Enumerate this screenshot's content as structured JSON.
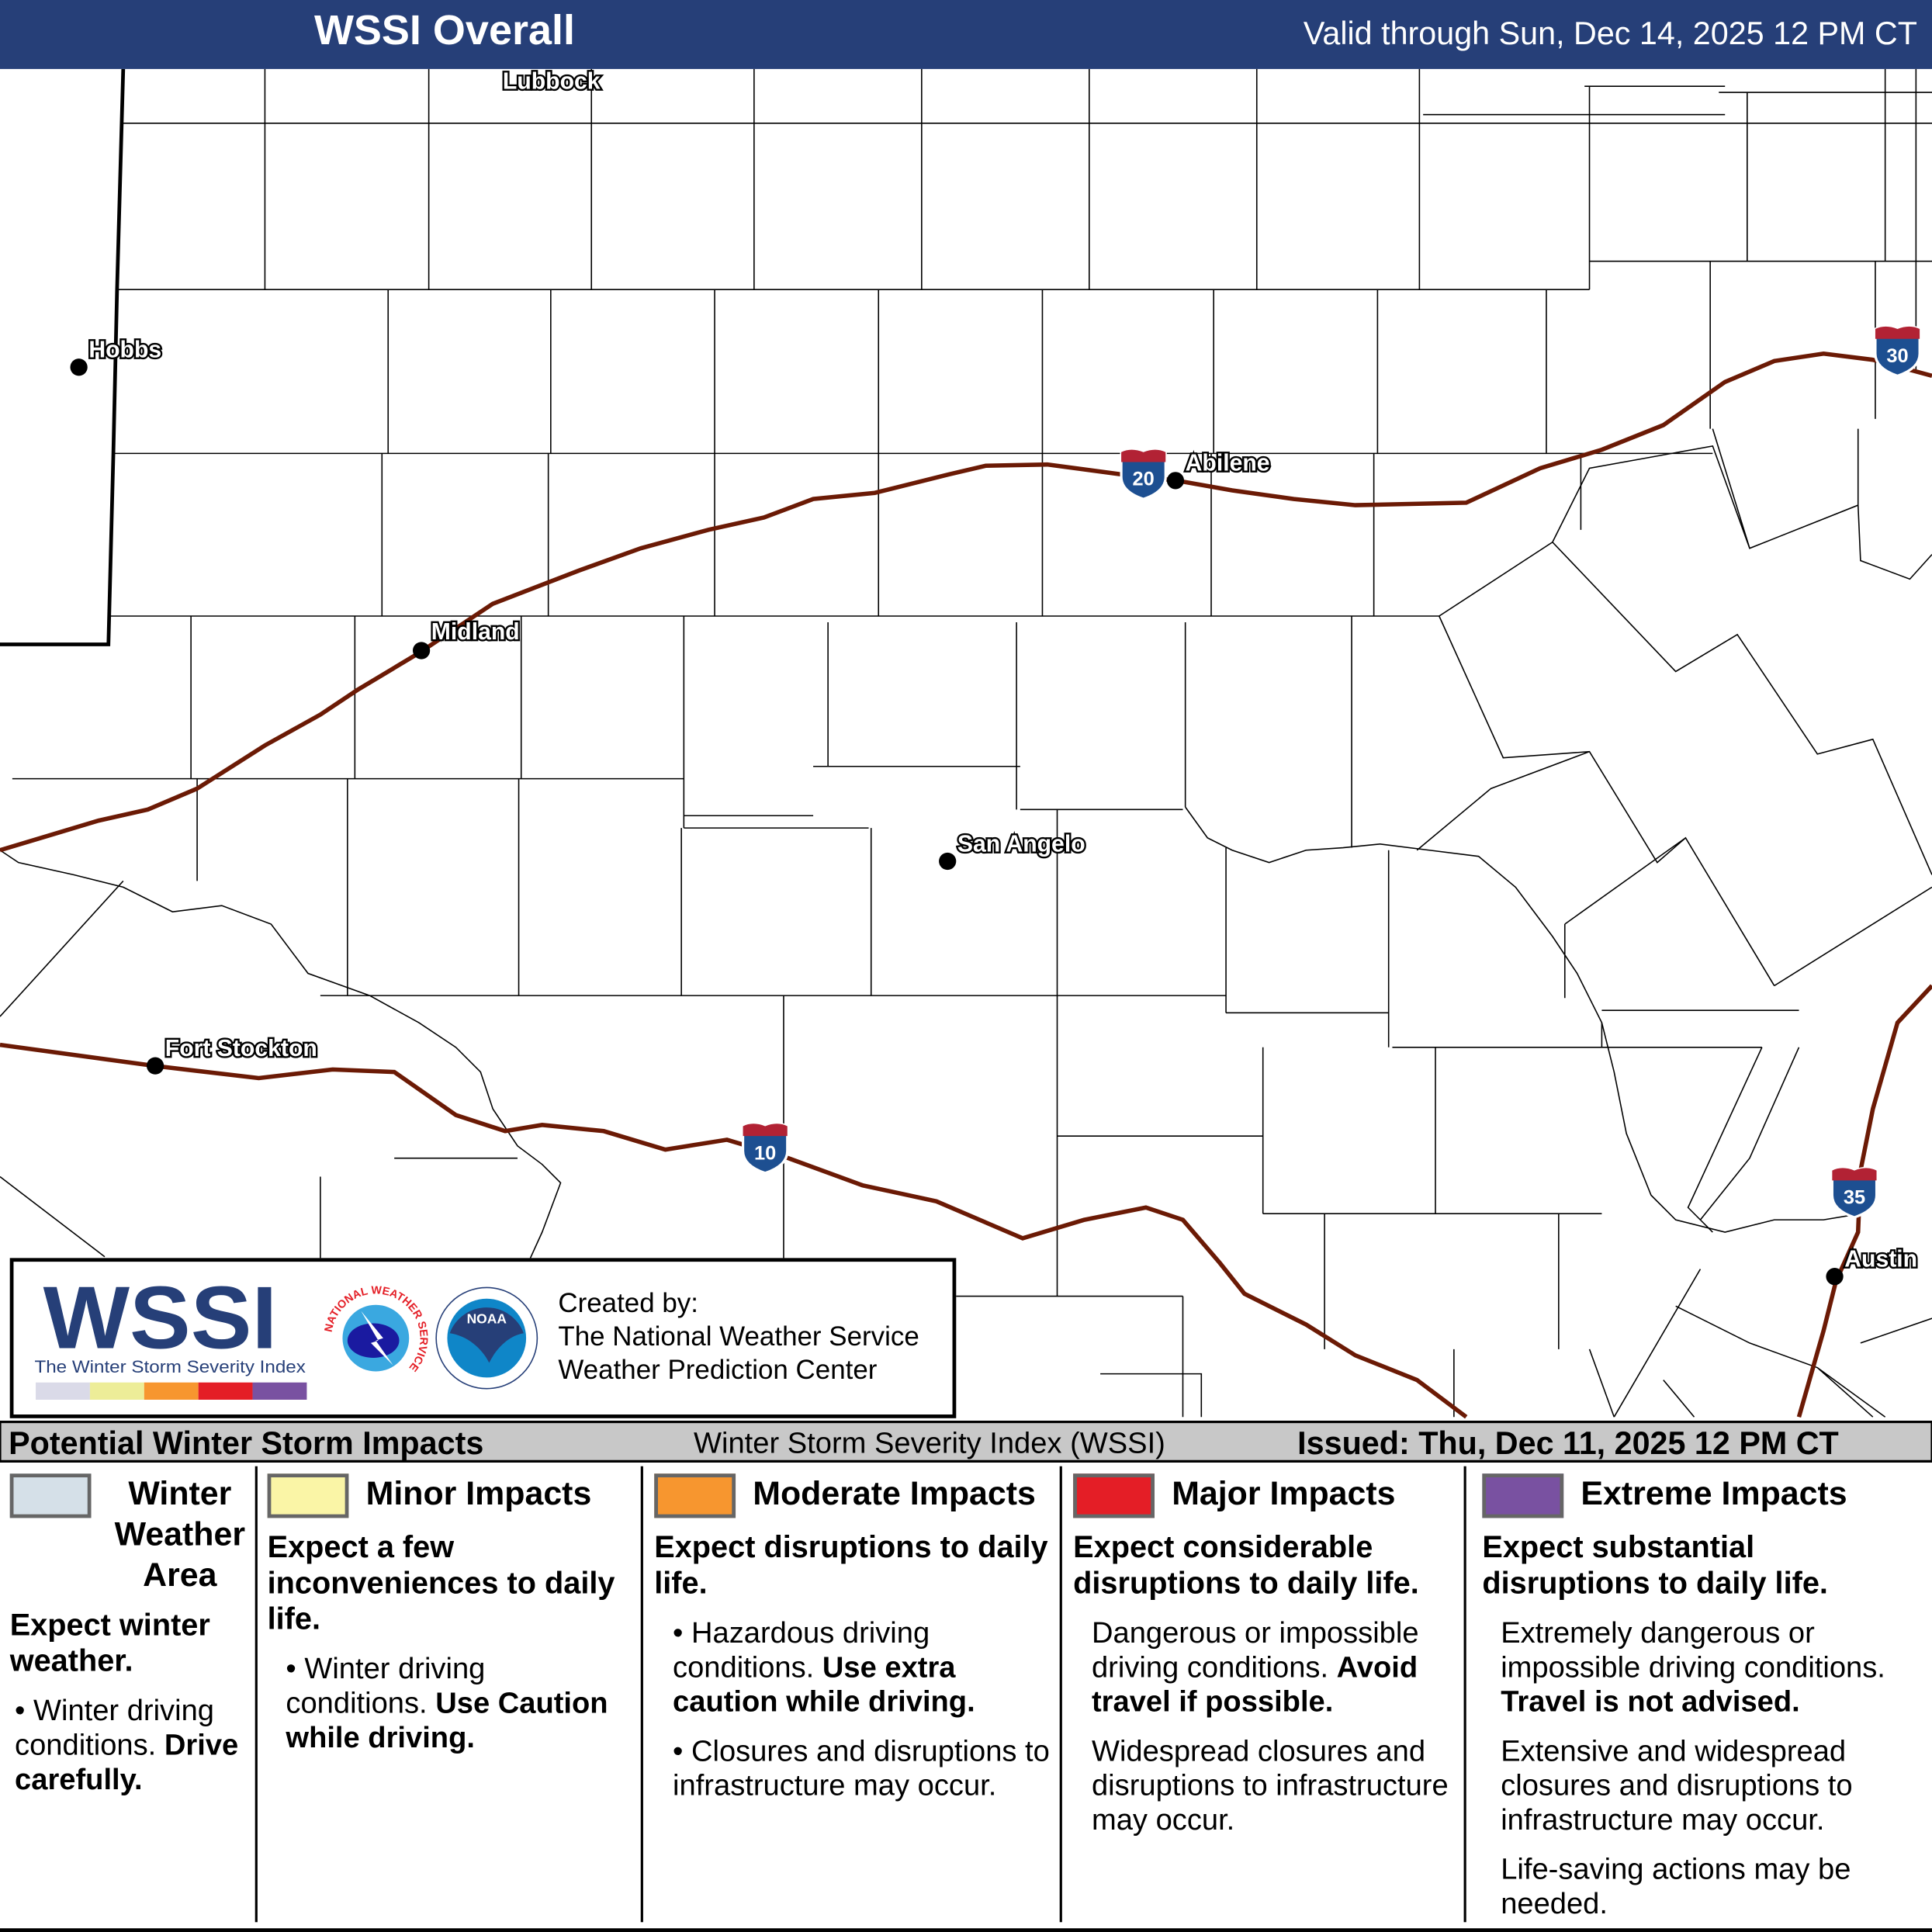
{
  "header": {
    "title": "WSSI Overall",
    "valid": "Valid through Sun, Dec 14, 2025 12 PM CT"
  },
  "map": {
    "cities": [
      "Lubbock",
      "Hobbs",
      "Abilene",
      "Midland",
      "San Angelo",
      "Fort Stockton",
      "Austin"
    ],
    "interstates": [
      "20",
      "10",
      "30",
      "35"
    ],
    "interstate_color": "#6b1a05"
  },
  "logo": {
    "wordmark": "WSSI",
    "tagline": "The Winter Storm Severity Index",
    "created_by": "Created by:",
    "org1": "The National Weather Service",
    "org2": "Weather Prediction Center",
    "nws_seal": "NATIONAL WEATHER SERVICE",
    "noaa_seal": "NOAA"
  },
  "legend_header": {
    "left": "Potential Winter Storm Impacts",
    "center": "Winter Storm Severity Index (WSSI)",
    "right": "Issued: Thu, Dec 11, 2025 12 PM CT"
  },
  "legend": [
    {
      "title": "Winter Weather Area",
      "color": "#d5e0e8",
      "summary": "Expect winter weather.",
      "b1": "Winter driving conditions.",
      "b1_bold": "Drive carefully."
    },
    {
      "title": "Minor Impacts",
      "color": "#faf5a6",
      "summary": "Expect a few inconveniences to daily life.",
      "b1": "Winter driving conditions.",
      "b1_bold": "Use Caution while driving."
    },
    {
      "title": "Moderate Impacts",
      "color": "#f7962f",
      "summary": "Expect disruptions to daily life.",
      "b1": "Hazardous driving conditions.",
      "b1_bold": "Use extra caution while driving.",
      "b2": "Closures and disruptions to infrastructure may occur."
    },
    {
      "title": "Major Impacts",
      "color": "#e41e26",
      "summary": "Expect considerable disruptions to daily life.",
      "b1": "Dangerous or impossible driving conditions.",
      "b1_bold": "Avoid travel if possible.",
      "b2": "Widespread closures and disruptions to infrastructure may occur."
    },
    {
      "title": "Extreme Impacts",
      "color": "#7951a1",
      "summary": "Expect substantial disruptions to daily life.",
      "b1": "Extremely dangerous or impossible driving conditions.",
      "b1_bold": "Travel is not advised.",
      "b2": "Extensive and widespread closures and disruptions to infrastructure may occur.",
      "b3": "Life-saving actions may be needed."
    }
  ]
}
